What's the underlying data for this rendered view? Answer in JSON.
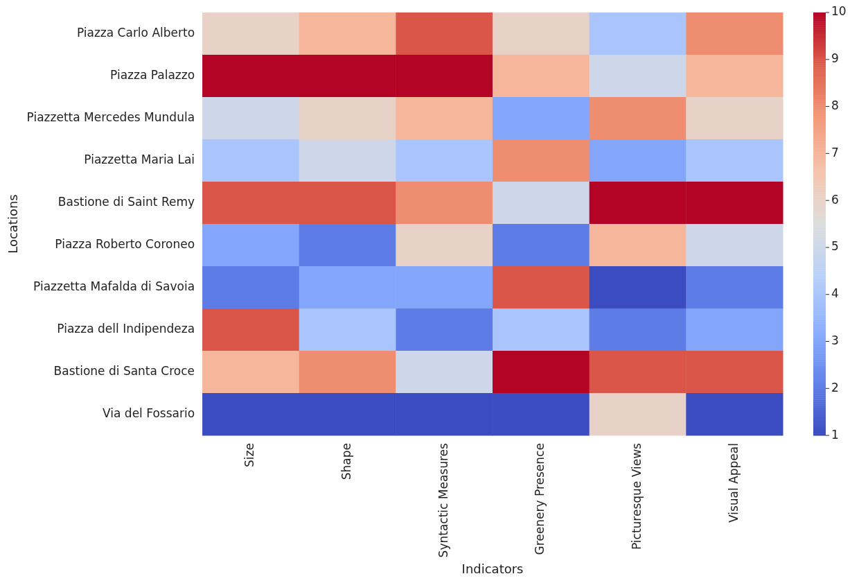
{
  "chart_data": {
    "type": "heatmap",
    "xlabel": "Indicators",
    "ylabel": "Locations",
    "categories": [
      "Size",
      "Shape",
      "Syntactic Measures",
      "Greenery Presence",
      "Picturesque Views",
      "Visual Appeal"
    ],
    "y_categories": [
      "Piazza Carlo Alberto",
      "Piazza Palazzo",
      "Piazzetta Mercedes Mundula",
      "Piazzetta Maria Lai",
      "Bastione di Saint Remy",
      "Piazza Roberto Coroneo",
      "Piazzetta Mafalda di Savoia",
      "Piazza dell Indipendeza",
      "Bastione di Santa Croce",
      "Via del Fossario"
    ],
    "cells": [
      [
        6,
        7,
        9,
        6,
        4,
        8
      ],
      [
        10,
        10,
        10,
        7,
        5,
        7
      ],
      [
        5,
        6,
        7,
        3,
        8,
        6
      ],
      [
        4,
        5,
        4,
        8,
        3,
        4
      ],
      [
        9,
        9,
        8,
        5,
        10,
        10
      ],
      [
        3,
        2,
        6,
        2,
        7,
        5
      ],
      [
        2,
        3,
        3,
        9,
        1,
        2
      ],
      [
        9,
        4,
        2,
        4,
        2,
        3
      ],
      [
        7,
        8,
        5,
        10,
        9,
        9
      ],
      [
        1,
        1,
        1,
        1,
        6,
        1
      ]
    ],
    "clim": [
      1,
      10
    ],
    "cticks": [
      1,
      2,
      3,
      4,
      5,
      6,
      7,
      8,
      9,
      10
    ]
  }
}
